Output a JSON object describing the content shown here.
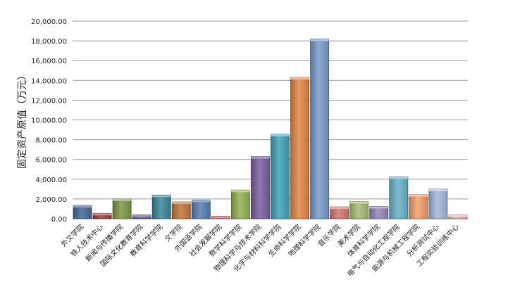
{
  "chart_data": {
    "type": "bar",
    "ylabel": "固定资产原值（万元）",
    "ylim": [
      0,
      20000
    ],
    "yticks": [
      "0.00",
      "2,000.00",
      "4,000.00",
      "6,000.00",
      "8,000.00",
      "10,000.00",
      "12,000.00",
      "14,000.00",
      "16,000.00",
      "18,000.00",
      "20,000.00"
    ],
    "grid": true,
    "style": "3d-shaded-bars",
    "categories": [
      "外文学院",
      "铁人技术中心",
      "新闻与传播学院",
      "国际文化教育学院",
      "教育科学学院",
      "文学院",
      "外国语学院",
      "社会发展学院",
      "数学科学学院",
      "物理科学与技术学院",
      "化学与材料科学学院",
      "生命科学学院",
      "地理科学学院",
      "音乐学院",
      "美术学院",
      "体育科学学院",
      "电气与自动化工程学院",
      "能源与机械工程学院",
      "分析测试中心",
      "工程实验训练中心"
    ],
    "values": [
      1350,
      550,
      2000,
      400,
      2400,
      1700,
      1900,
      250,
      2900,
      6300,
      8550,
      14300,
      18200,
      1200,
      1750,
      1250,
      4250,
      2450,
      3000,
      400
    ],
    "colors": [
      "#4A6E9A",
      "#A1403F",
      "#7E9C4A",
      "#6C5A8E",
      "#3F8A9C",
      "#C97A3E",
      "#5A82BA",
      "#C25451",
      "#98B55A",
      "#7E62A6",
      "#45A6BC",
      "#E8894A",
      "#7B9FCF",
      "#D77B78",
      "#A8C277",
      "#9A88BC",
      "#6CB6CA",
      "#F6A46E",
      "#A7BBDC",
      "#E8B6B4"
    ]
  }
}
